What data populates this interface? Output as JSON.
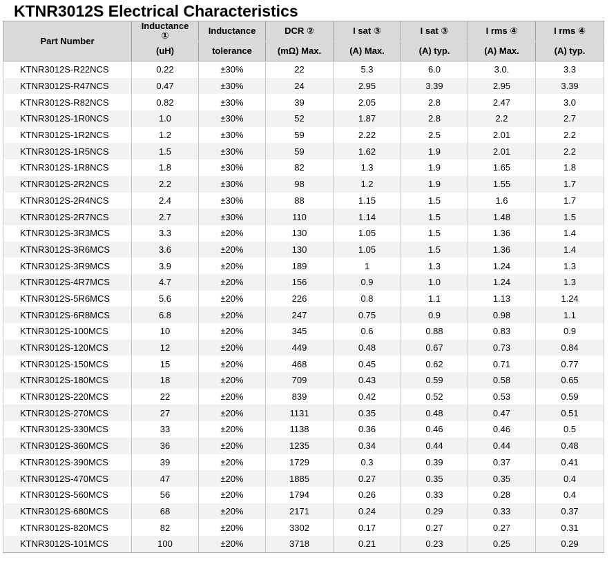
{
  "title": "KTNR3012S Electrical Characteristics",
  "headers": {
    "part_number": "Part Number",
    "inductance_top": "Inductance",
    "inductance_mark": "①",
    "inductance_unit": "(uH)",
    "tolerance_top": "Inductance",
    "tolerance_bottom": "tolerance",
    "dcr_top": "DCR ②",
    "dcr_bottom": "(mΩ) Max.",
    "isat_max_top": "I sat ③",
    "isat_max_bottom": "(A) Max.",
    "isat_typ_top": "I sat ③",
    "isat_typ_bottom": "(A) typ.",
    "irms_max_top": "I rms ④",
    "irms_max_bottom": "(A) Max.",
    "irms_typ_top": "I rms ④",
    "irms_typ_bottom": "(A) typ."
  },
  "rows": [
    [
      "KTNR3012S-R22NCS",
      "0.22",
      "±30%",
      "22",
      "5.3",
      "6.0",
      "3.0.",
      "3.3"
    ],
    [
      "KTNR3012S-R47NCS",
      "0.47",
      "±30%",
      "24",
      "2.95",
      "3.39",
      "2.95",
      "3.39"
    ],
    [
      "KTNR3012S-R82NCS",
      "0.82",
      "±30%",
      "39",
      "2.05",
      "2.8",
      "2.47",
      "3.0"
    ],
    [
      "KTNR3012S-1R0NCS",
      "1.0",
      "±30%",
      "52",
      "1.87",
      "2.8",
      "2.2",
      "2.7"
    ],
    [
      "KTNR3012S-1R2NCS",
      "1.2",
      "±30%",
      "59",
      "2.22",
      "2.5",
      "2.01",
      "2.2"
    ],
    [
      "KTNR3012S-1R5NCS",
      "1.5",
      "±30%",
      "59",
      "1.62",
      "1.9",
      "2.01",
      "2.2"
    ],
    [
      "KTNR3012S-1R8NCS",
      "1.8",
      "±30%",
      "82",
      "1.3",
      "1.9",
      "1.65",
      "1.8"
    ],
    [
      "KTNR3012S-2R2NCS",
      "2.2",
      "±30%",
      "98",
      "1.2",
      "1.9",
      "1.55",
      "1.7"
    ],
    [
      "KTNR3012S-2R4NCS",
      "2.4",
      "±30%",
      "88",
      "1.15",
      "1.5",
      "1.6",
      "1.7"
    ],
    [
      "KTNR3012S-2R7NCS",
      "2.7",
      "±30%",
      "110",
      "1.14",
      "1.5",
      "1.48",
      "1.5"
    ],
    [
      "KTNR3012S-3R3MCS",
      "3.3",
      "±20%",
      "130",
      "1.05",
      "1.5",
      "1.36",
      "1.4"
    ],
    [
      "KTNR3012S-3R6MCS",
      "3.6",
      "±20%",
      "130",
      "1.05",
      "1.5",
      "1.36",
      "1.4"
    ],
    [
      "KTNR3012S-3R9MCS",
      "3.9",
      "±20%",
      "189",
      "1",
      "1.3",
      "1.24",
      "1.3"
    ],
    [
      "KTNR3012S-4R7MCS",
      "4.7",
      "±20%",
      "156",
      "0.9",
      "1.0",
      "1.24",
      "1.3"
    ],
    [
      "KTNR3012S-5R6MCS",
      "5.6",
      "±20%",
      "226",
      "0.8",
      "1.1",
      "1.13",
      "1.24"
    ],
    [
      "KTNR3012S-6R8MCS",
      "6.8",
      "±20%",
      "247",
      "0.75",
      "0.9",
      "0.98",
      "1.1"
    ],
    [
      "KTNR3012S-100MCS",
      "10",
      "±20%",
      "345",
      "0.6",
      "0.88",
      "0.83",
      "0.9"
    ],
    [
      "KTNR3012S-120MCS",
      "12",
      "±20%",
      "449",
      "0.48",
      "0.67",
      "0.73",
      "0.84"
    ],
    [
      "KTNR3012S-150MCS",
      "15",
      "±20%",
      "468",
      "0.45",
      "0.62",
      "0.71",
      "0.77"
    ],
    [
      "KTNR3012S-180MCS",
      "18",
      "±20%",
      "709",
      "0.43",
      "0.59",
      "0.58",
      "0.65"
    ],
    [
      "KTNR3012S-220MCS",
      "22",
      "±20%",
      "839",
      "0.42",
      "0.52",
      "0.53",
      "0.59"
    ],
    [
      "KTNR3012S-270MCS",
      "27",
      "±20%",
      "1131",
      "0.35",
      "0.48",
      "0.47",
      "0.51"
    ],
    [
      "KTNR3012S-330MCS",
      "33",
      "±20%",
      "1138",
      "0.36",
      "0.46",
      "0.46",
      "0.5"
    ],
    [
      "KTNR3012S-360MCS",
      "36",
      "±20%",
      "1235",
      "0.34",
      "0.44",
      "0.44",
      "0.48"
    ],
    [
      "KTNR3012S-390MCS",
      "39",
      "±20%",
      "1729",
      "0.3",
      "0.39",
      "0.37",
      "0.41"
    ],
    [
      "KTNR3012S-470MCS",
      "47",
      "±20%",
      "1885",
      "0.27",
      "0.35",
      "0.35",
      "0.4"
    ],
    [
      "KTNR3012S-560MCS",
      "56",
      "±20%",
      "1794",
      "0.26",
      "0.33",
      "0.28",
      "0.4"
    ],
    [
      "KTNR3012S-680MCS",
      "68",
      "±20%",
      "2171",
      "0.24",
      "0.29",
      "0.33",
      "0.37"
    ],
    [
      "KTNR3012S-820MCS",
      "82",
      "±20%",
      "3302",
      "0.17",
      "0.27",
      "0.27",
      "0.31"
    ],
    [
      "KTNR3012S-101MCS",
      "100",
      "±20%",
      "3718",
      "0.21",
      "0.23",
      "0.25",
      "0.29"
    ]
  ]
}
